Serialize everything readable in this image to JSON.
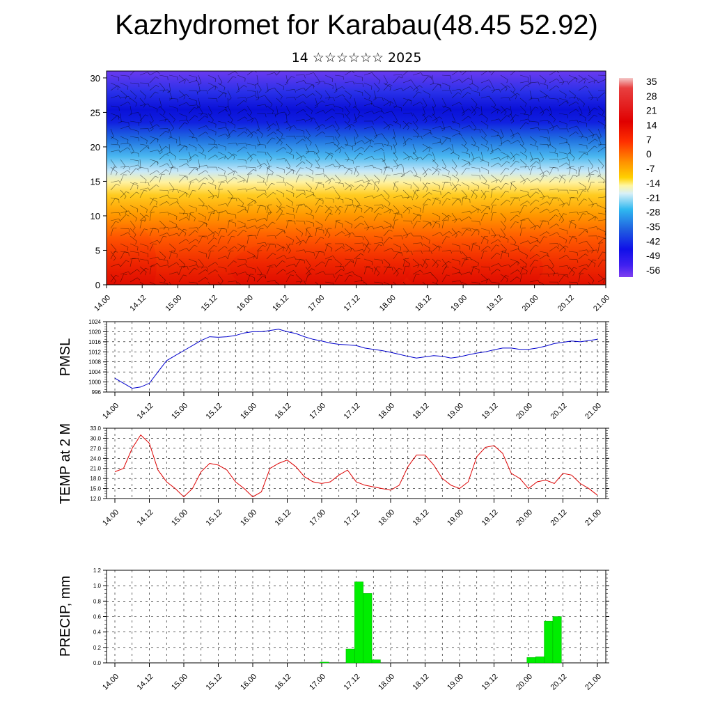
{
  "page": {
    "title": "Kazhydromet for Karabau(48.45 52.92)",
    "subtitle": "14 ☆☆☆☆☆☆ 2025"
  },
  "colors": {
    "pmsl_line": "#0000cc",
    "temp_line": "#dd0000",
    "precip_bar": "#00ee00",
    "precip_edge": "#00aa00"
  },
  "time_labels": [
    "14.00",
    "14.12",
    "15.00",
    "15.12",
    "16.00",
    "16.12",
    "17.00",
    "17.12",
    "18.00",
    "18.12",
    "19.00",
    "19.12",
    "20.00",
    "20.12",
    "21.00"
  ],
  "chart_data": [
    {
      "type": "heatmap",
      "name": "cross-section",
      "y_ticks": [
        "0",
        "5",
        "10",
        "15",
        "20",
        "25",
        "30"
      ],
      "ylim": [
        0,
        31
      ],
      "colorbar_labels": [
        "35",
        "28",
        "21",
        "14",
        "7",
        "0",
        "-7",
        "-14",
        "-21",
        "-28",
        "-35",
        "-42",
        "-49",
        "-56"
      ],
      "colorbar_range": [
        -60,
        38
      ],
      "overlay": "wind barbs"
    },
    {
      "type": "line",
      "ylabel": "PMSL",
      "y_ticks": [
        "1024",
        "1020",
        "1016",
        "1012",
        "1008",
        "1004",
        "1000",
        "996"
      ],
      "ylim": [
        996,
        1024
      ],
      "x_hours": [
        0,
        3,
        6,
        9,
        12,
        15,
        18,
        21,
        24,
        27,
        30,
        33,
        36,
        39,
        42,
        45,
        48,
        51,
        54,
        57,
        60,
        63,
        66,
        69,
        72,
        75,
        78,
        81,
        84,
        87,
        90,
        93,
        96,
        99,
        102,
        105,
        108,
        111,
        114,
        117,
        120,
        123,
        126,
        129,
        132,
        135,
        138,
        141,
        144,
        147,
        150,
        153,
        156,
        159,
        162,
        165,
        168
      ],
      "values": [
        1001.5,
        999.5,
        997.5,
        998,
        999.5,
        1004,
        1008.5,
        1010.5,
        1012.5,
        1014.5,
        1016.5,
        1018,
        1017.8,
        1018,
        1018.5,
        1019.5,
        1020,
        1020,
        1020.5,
        1021,
        1020,
        1019.3,
        1018,
        1017,
        1016.3,
        1015.5,
        1015,
        1014.8,
        1014.5,
        1013.5,
        1013,
        1012.5,
        1011.8,
        1011,
        1010.2,
        1009.5,
        1010,
        1010.5,
        1010.2,
        1009.5,
        1010,
        1010.8,
        1011.5,
        1012,
        1012.8,
        1013.5,
        1013.5,
        1013,
        1013,
        1013.5,
        1014.3,
        1015.3,
        1015.8,
        1016.3,
        1016,
        1016.5,
        1017
      ]
    },
    {
      "type": "line",
      "ylabel": "TEMP at 2 M",
      "y_ticks": [
        "33.0",
        "30.0",
        "27.0",
        "24.0",
        "21.0",
        "18.0",
        "15.0",
        "12.0"
      ],
      "ylim": [
        12,
        33
      ],
      "x_hours": [
        0,
        3,
        6,
        9,
        12,
        15,
        18,
        21,
        24,
        27,
        30,
        33,
        36,
        39,
        42,
        45,
        48,
        51,
        54,
        57,
        60,
        63,
        66,
        69,
        72,
        75,
        78,
        81,
        84,
        87,
        90,
        93,
        96,
        99,
        102,
        105,
        108,
        111,
        114,
        117,
        120,
        123,
        126,
        129,
        132,
        135,
        138,
        141,
        144,
        147,
        150,
        153,
        156,
        159,
        162,
        165,
        168
      ],
      "values": [
        20,
        21,
        27,
        31,
        28.5,
        20.5,
        17,
        15,
        12.5,
        15,
        20,
        22.5,
        22,
        20.5,
        17,
        15,
        12.5,
        14,
        21,
        22.5,
        23.5,
        21.5,
        18.5,
        17,
        16.5,
        17,
        19,
        20.5,
        17,
        16,
        15.5,
        15,
        14.5,
        16,
        21.5,
        25,
        25,
        22,
        18,
        16,
        15,
        17,
        24.5,
        27.3,
        27.8,
        25.5,
        19.5,
        18,
        15,
        17,
        17.5,
        16.5,
        19.5,
        19,
        16.5,
        15,
        13
      ]
    },
    {
      "type": "bar",
      "ylabel": "PRECIP, mm",
      "y_ticks": [
        "1.2",
        "1.0",
        "0.8",
        "0.6",
        "0.4",
        "0.2",
        "0.0"
      ],
      "ylim": [
        0,
        1.2
      ],
      "x_hours": [
        72,
        81,
        84,
        87,
        90,
        93,
        144,
        147,
        150,
        153
      ],
      "values": [
        0.01,
        0.18,
        1.05,
        0.9,
        0.04,
        0.0,
        0.07,
        0.08,
        0.54,
        0.6
      ]
    }
  ]
}
